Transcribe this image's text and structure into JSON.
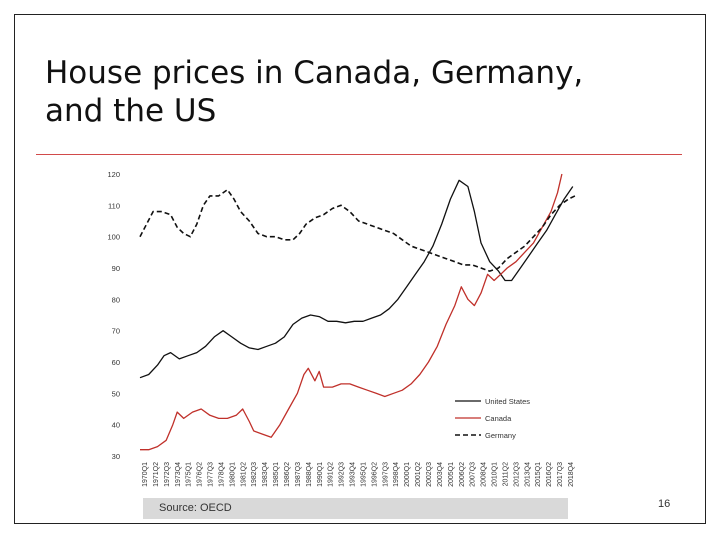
{
  "slide": {
    "title_line1": "House prices in Canada, Germany,",
    "title_line2": "and the US",
    "source": "Source: OECD",
    "page_number": "16",
    "accent_color": "#d14a4a"
  },
  "chart_data": {
    "type": "line",
    "title": "",
    "xlabel": "",
    "ylabel": "",
    "ylim": [
      30,
      120
    ],
    "yticks": [
      30,
      40,
      50,
      60,
      70,
      80,
      90,
      100,
      110,
      120
    ],
    "x_tick_labels": [
      "1970Q1",
      "1971Q2",
      "1972Q3",
      "1973Q4",
      "1975Q1",
      "1976Q2",
      "1977Q3",
      "1978Q4",
      "1980Q1",
      "1981Q2",
      "1982Q3",
      "1983Q4",
      "1985Q1",
      "1986Q2",
      "1987Q3",
      "1988Q4",
      "1990Q1",
      "1991Q2",
      "1992Q3",
      "1993Q4",
      "1995Q1",
      "1996Q2",
      "1997Q3",
      "1998Q4",
      "2000Q1",
      "2001Q2",
      "2002Q3",
      "2003Q4",
      "2005Q1",
      "2006Q2",
      "2007Q3",
      "2008Q4",
      "2010Q1",
      "2011Q2",
      "2012Q3",
      "2013Q4",
      "2015Q1",
      "2016Q2",
      "2017Q3",
      "2018Q4"
    ],
    "legend": [
      "United States",
      "Canada",
      "Germany"
    ],
    "legend_position": "bottom-right",
    "x_range": [
      1970.0,
      2019.75
    ],
    "series": [
      {
        "name": "United States",
        "color": "#111111",
        "style": "solid",
        "points": [
          [
            1970.0,
            55
          ],
          [
            1971.0,
            56
          ],
          [
            1972.0,
            59
          ],
          [
            1972.75,
            62
          ],
          [
            1973.5,
            63
          ],
          [
            1974.5,
            61
          ],
          [
            1975.5,
            62
          ],
          [
            1976.5,
            63
          ],
          [
            1977.5,
            65
          ],
          [
            1978.5,
            68
          ],
          [
            1979.5,
            70
          ],
          [
            1980.5,
            68
          ],
          [
            1981.5,
            66
          ],
          [
            1982.5,
            64.5
          ],
          [
            1983.5,
            64
          ],
          [
            1984.5,
            65
          ],
          [
            1985.5,
            66
          ],
          [
            1986.5,
            68
          ],
          [
            1987.5,
            72
          ],
          [
            1988.5,
            74
          ],
          [
            1989.5,
            75
          ],
          [
            1990.5,
            74.5
          ],
          [
            1991.5,
            73
          ],
          [
            1992.5,
            73
          ],
          [
            1993.5,
            72.5
          ],
          [
            1994.5,
            73
          ],
          [
            1995.5,
            73
          ],
          [
            1996.5,
            74
          ],
          [
            1997.5,
            75
          ],
          [
            1998.5,
            77
          ],
          [
            1999.5,
            80
          ],
          [
            2000.5,
            84
          ],
          [
            2001.5,
            88
          ],
          [
            2002.5,
            92
          ],
          [
            2003.5,
            97
          ],
          [
            2004.5,
            104
          ],
          [
            2005.5,
            112
          ],
          [
            2006.5,
            118
          ],
          [
            2007.5,
            116
          ],
          [
            2008.25,
            108
          ],
          [
            2009.0,
            98
          ],
          [
            2010.0,
            92
          ],
          [
            2011.0,
            89
          ],
          [
            2011.75,
            86
          ],
          [
            2012.5,
            86
          ],
          [
            2013.5,
            90
          ],
          [
            2014.5,
            94
          ],
          [
            2015.5,
            98
          ],
          [
            2016.5,
            102
          ],
          [
            2017.5,
            107
          ],
          [
            2018.5,
            112
          ],
          [
            2019.5,
            116
          ]
        ]
      },
      {
        "name": "Canada",
        "color": "#c0302a",
        "style": "solid",
        "points": [
          [
            1970.0,
            32
          ],
          [
            1971.0,
            32
          ],
          [
            1972.0,
            33
          ],
          [
            1973.0,
            35
          ],
          [
            1973.75,
            40
          ],
          [
            1974.25,
            44
          ],
          [
            1975.0,
            42
          ],
          [
            1976.0,
            44
          ],
          [
            1977.0,
            45
          ],
          [
            1978.0,
            43
          ],
          [
            1979.0,
            42
          ],
          [
            1980.0,
            42
          ],
          [
            1981.0,
            43
          ],
          [
            1981.75,
            45
          ],
          [
            1982.5,
            41
          ],
          [
            1983.0,
            38
          ],
          [
            1984.0,
            37
          ],
          [
            1985.0,
            36
          ],
          [
            1986.0,
            40
          ],
          [
            1987.0,
            45
          ],
          [
            1988.0,
            50
          ],
          [
            1988.75,
            56
          ],
          [
            1989.25,
            58
          ],
          [
            1990.0,
            54
          ],
          [
            1990.5,
            57
          ],
          [
            1991.0,
            52
          ],
          [
            1992.0,
            52
          ],
          [
            1993.0,
            53
          ],
          [
            1994.0,
            53
          ],
          [
            1995.0,
            52
          ],
          [
            1996.0,
            51
          ],
          [
            1997.0,
            50
          ],
          [
            1998.0,
            49
          ],
          [
            1999.0,
            50
          ],
          [
            2000.0,
            51
          ],
          [
            2001.0,
            53
          ],
          [
            2002.0,
            56
          ],
          [
            2003.0,
            60
          ],
          [
            2004.0,
            65
          ],
          [
            2005.0,
            72
          ],
          [
            2006.0,
            78
          ],
          [
            2006.75,
            84
          ],
          [
            2007.5,
            80
          ],
          [
            2008.25,
            78
          ],
          [
            2009.0,
            82
          ],
          [
            2009.75,
            88
          ],
          [
            2010.5,
            86
          ],
          [
            2011.25,
            88
          ],
          [
            2012.0,
            90
          ],
          [
            2013.0,
            92
          ],
          [
            2014.0,
            95
          ],
          [
            2015.0,
            98
          ],
          [
            2016.0,
            103
          ],
          [
            2017.0,
            108
          ],
          [
            2017.75,
            114
          ],
          [
            2018.25,
            120
          ]
        ]
      },
      {
        "name": "Germany",
        "color": "#111111",
        "style": "dashed",
        "points": [
          [
            1970.0,
            100
          ],
          [
            1970.75,
            104
          ],
          [
            1971.5,
            108
          ],
          [
            1972.5,
            108
          ],
          [
            1973.5,
            107
          ],
          [
            1974.25,
            103
          ],
          [
            1975.0,
            101
          ],
          [
            1975.75,
            100
          ],
          [
            1976.5,
            104
          ],
          [
            1977.25,
            110
          ],
          [
            1978.0,
            113
          ],
          [
            1979.0,
            113
          ],
          [
            1980.0,
            115
          ],
          [
            1980.75,
            112
          ],
          [
            1981.5,
            108
          ],
          [
            1982.5,
            105
          ],
          [
            1983.5,
            101
          ],
          [
            1984.5,
            100
          ],
          [
            1985.5,
            100
          ],
          [
            1986.5,
            99
          ],
          [
            1987.5,
            99
          ],
          [
            1988.25,
            101
          ],
          [
            1989.0,
            104
          ],
          [
            1990.0,
            106
          ],
          [
            1991.0,
            107
          ],
          [
            1992.0,
            109
          ],
          [
            1993.0,
            110
          ],
          [
            1994.0,
            108
          ],
          [
            1995.0,
            105
          ],
          [
            1996.0,
            104
          ],
          [
            1997.0,
            103
          ],
          [
            1998.0,
            102
          ],
          [
            1999.0,
            101
          ],
          [
            2000.0,
            99
          ],
          [
            2001.0,
            97
          ],
          [
            2002.0,
            96
          ],
          [
            2003.0,
            95
          ],
          [
            2004.0,
            94
          ],
          [
            2005.0,
            93
          ],
          [
            2006.0,
            92
          ],
          [
            2007.0,
            91
          ],
          [
            2008.0,
            91
          ],
          [
            2009.0,
            90
          ],
          [
            2010.0,
            89
          ],
          [
            2011.0,
            90
          ],
          [
            2012.0,
            93
          ],
          [
            2013.0,
            95
          ],
          [
            2014.0,
            97
          ],
          [
            2015.0,
            100
          ],
          [
            2016.0,
            103
          ],
          [
            2017.0,
            107
          ],
          [
            2018.0,
            110
          ],
          [
            2019.0,
            112
          ],
          [
            2019.75,
            113
          ]
        ]
      }
    ]
  }
}
